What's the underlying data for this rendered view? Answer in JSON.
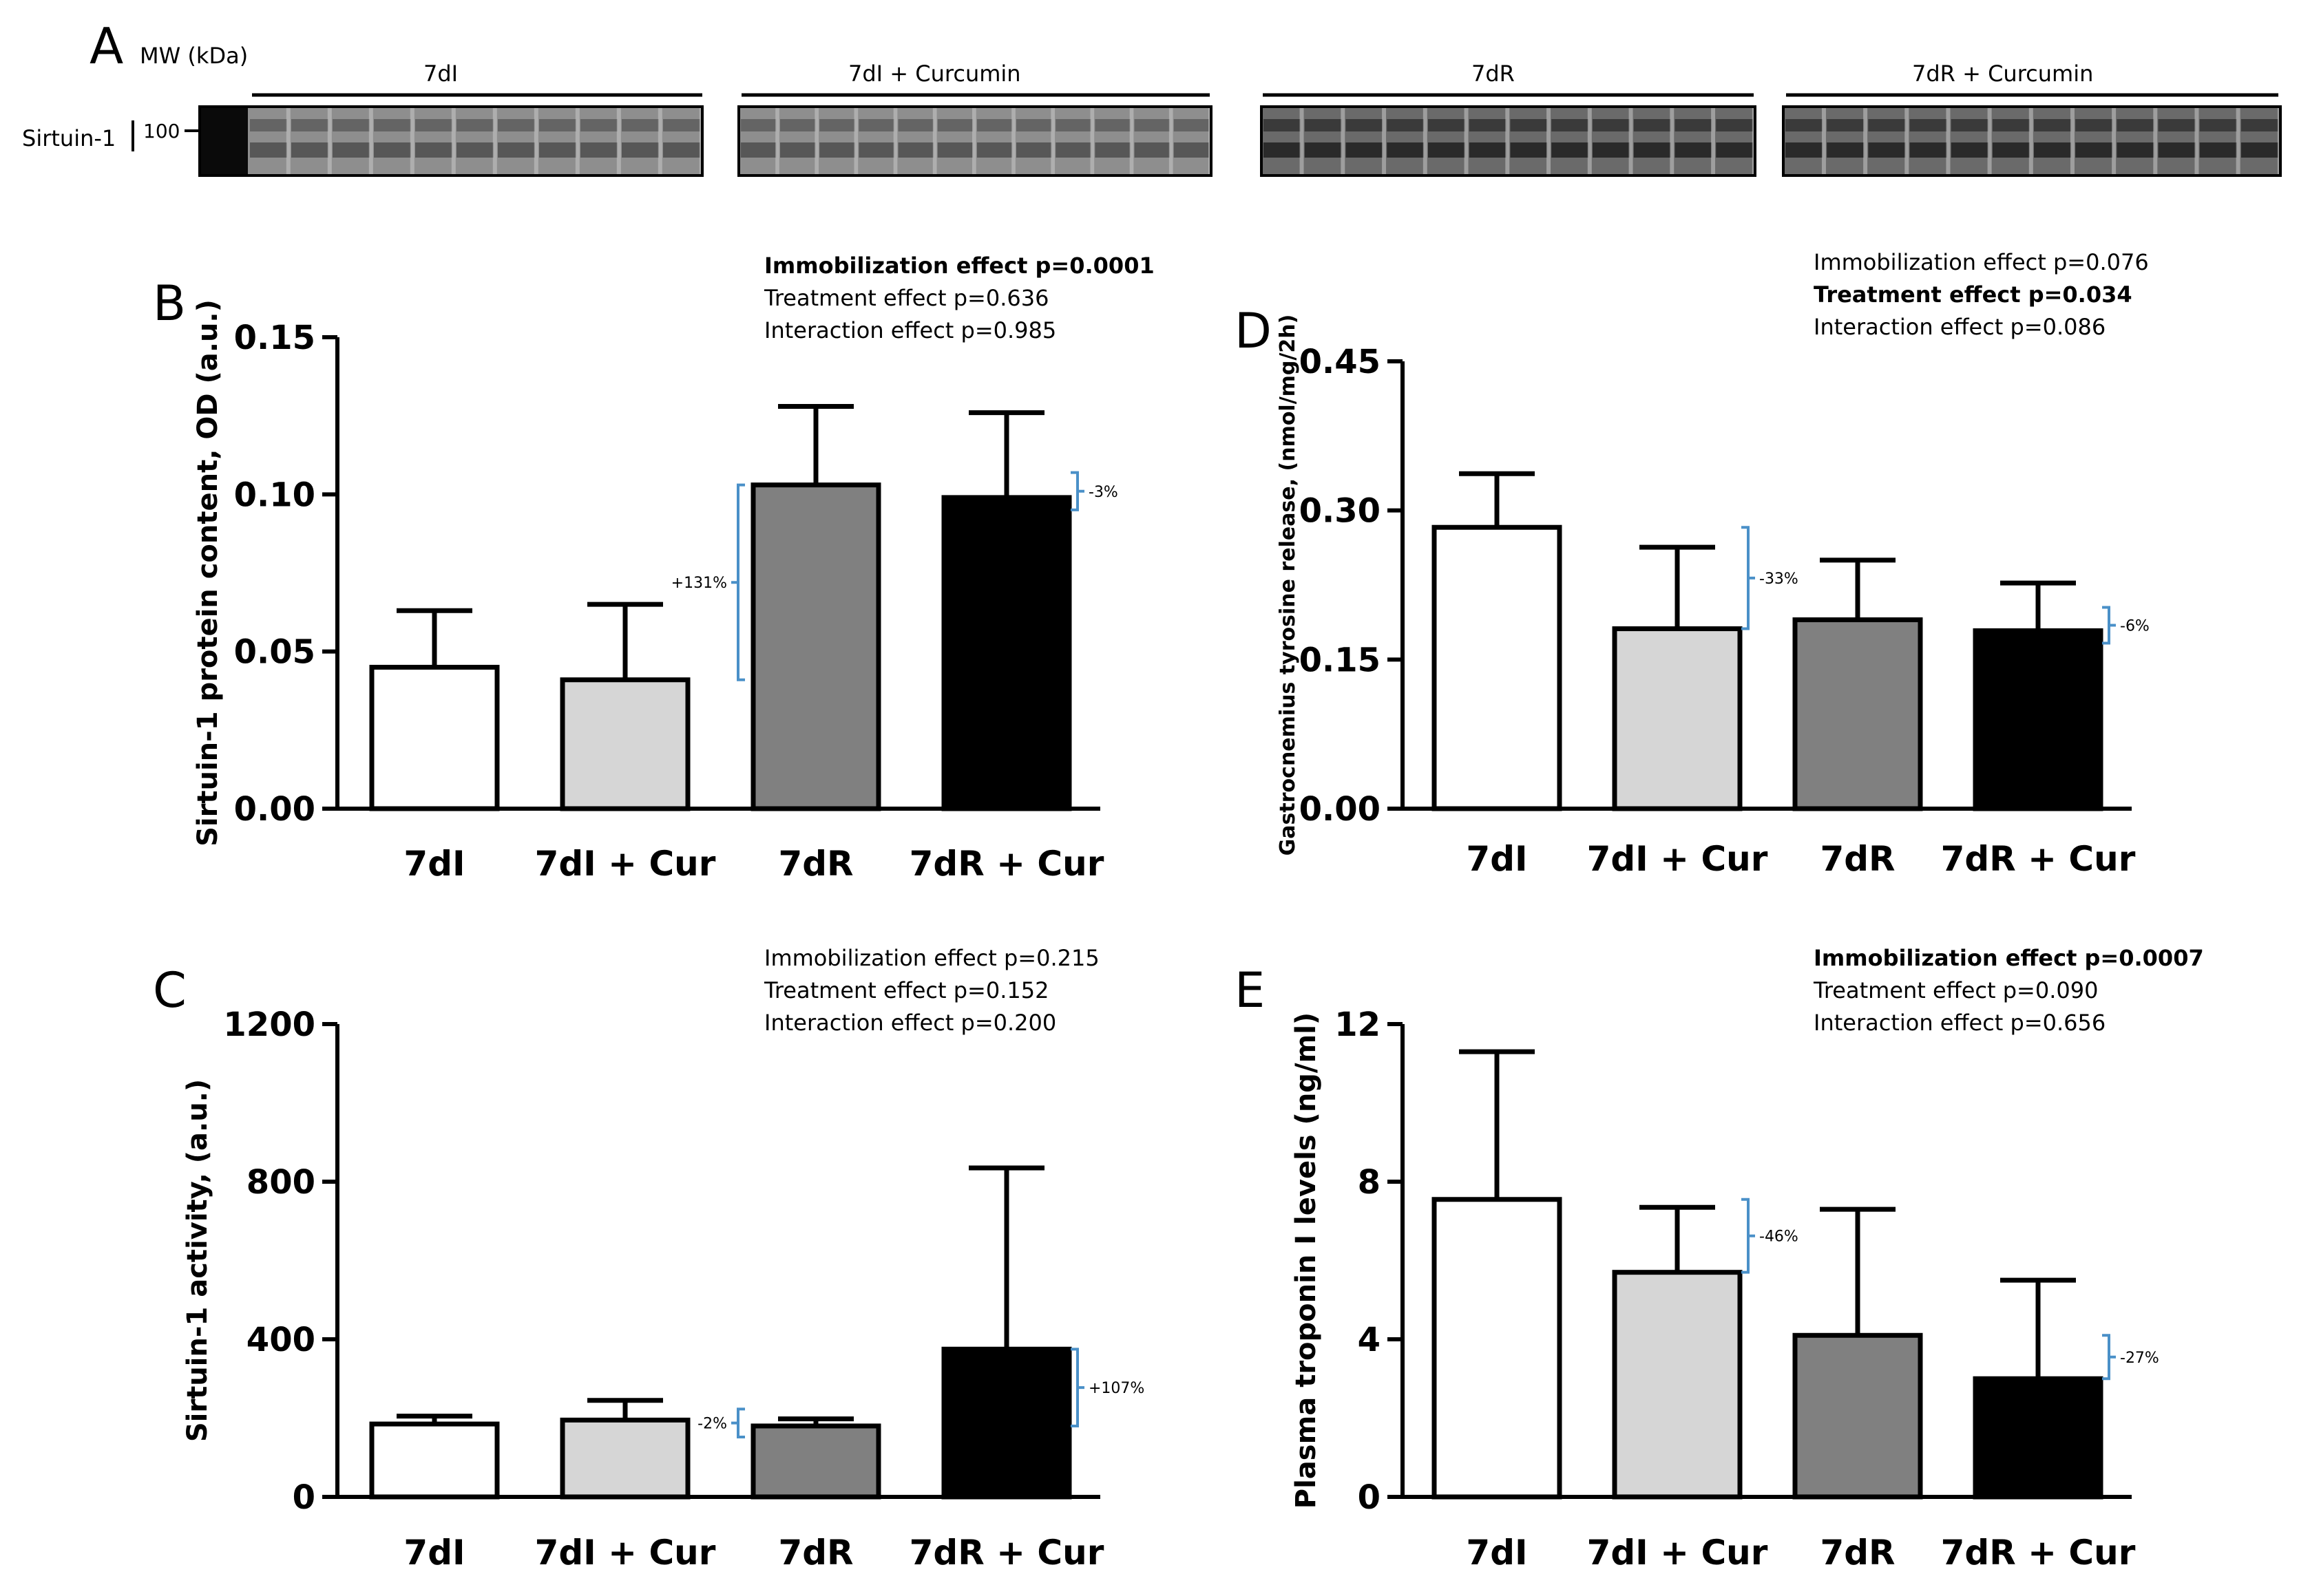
{
  "colors": {
    "bar_7dI": "#ffffff",
    "bar_7dI_cur": "#d6d6d6",
    "bar_7dR": "#808080",
    "bar_7dR_cur": "#000000",
    "bracket": "#4a90c8",
    "axis": "#000000"
  },
  "panel_A": {
    "letter": "A",
    "mw_label": "MW (kDa)",
    "protein_label": "Sirtuin-1",
    "marker_label": "100",
    "groups": [
      "7dI",
      "7dI + Curcumin",
      "7dR",
      "7dR + Curcumin"
    ]
  },
  "chart_data": [
    {
      "panel": "B",
      "type": "bar",
      "categories": [
        "7dI",
        "7dI + Cur",
        "7dR",
        "7dR + Cur"
      ],
      "values": [
        0.045,
        0.041,
        0.103,
        0.099
      ],
      "errors": [
        0.018,
        0.024,
        0.025,
        0.027
      ],
      "ylabel": "Sirtuin-1 protein content, OD (a.u.)",
      "ylim": [
        0,
        0.15
      ],
      "yticks": [
        "0.00",
        "0.05",
        "0.10",
        "0.15"
      ],
      "ytick_values": [
        0,
        0.05,
        0.1,
        0.15
      ],
      "stats": [
        {
          "text": "Immobilization effect p=0.0001",
          "bold": true
        },
        {
          "text": "Treatment effect p=0.636",
          "bold": false
        },
        {
          "text": "Interaction effect p=0.985",
          "bold": false
        }
      ],
      "annotations": [
        {
          "text": "+131%",
          "from": 1,
          "to": 2,
          "side": "left"
        },
        {
          "text": "-3%",
          "from": 3,
          "to": 3,
          "side": "right"
        }
      ]
    },
    {
      "panel": "C",
      "type": "bar",
      "categories": [
        "7dI",
        "7dI + Cur",
        "7dR",
        "7dR + Cur"
      ],
      "values": [
        185,
        195,
        180,
        375
      ],
      "errors": [
        20,
        50,
        18,
        460
      ],
      "ylabel": "Sirtuin-1 activity, (a.u.)",
      "ylim": [
        0,
        1200
      ],
      "yticks": [
        "0",
        "400",
        "800",
        "1200"
      ],
      "ytick_values": [
        0,
        400,
        800,
        1200
      ],
      "stats": [
        {
          "text": "Immobilization effect p=0.215",
          "bold": false
        },
        {
          "text": "Treatment effect p=0.152",
          "bold": false
        },
        {
          "text": "Interaction effect p=0.200",
          "bold": false
        }
      ],
      "annotations": [
        {
          "text": "-2%",
          "from": 1,
          "to": 2,
          "side": "left"
        },
        {
          "text": "+107%",
          "from": 3,
          "to": 3,
          "side": "right"
        }
      ]
    },
    {
      "panel": "D",
      "type": "bar",
      "categories": [
        "7dI",
        "7dI + Cur",
        "7dR",
        "7dR + Cur"
      ],
      "values": [
        0.283,
        0.181,
        0.19,
        0.179
      ],
      "errors": [
        0.054,
        0.082,
        0.06,
        0.048
      ],
      "ylabel": "Gastrocnemius tyrosine release, (nmol/mg/2h)",
      "ylim": [
        0,
        0.45
      ],
      "yticks": [
        "0.00",
        "0.15",
        "0.30",
        "0.45"
      ],
      "ytick_values": [
        0,
        0.15,
        0.3,
        0.45
      ],
      "stats": [
        {
          "text": "Immobilization effect p=0.076",
          "bold": false
        },
        {
          "text": "Treatment effect p=0.034",
          "bold": true
        },
        {
          "text": "Interaction effect p=0.086",
          "bold": false
        }
      ],
      "annotations": [
        {
          "text": "-33%",
          "from": 0,
          "to": 1,
          "side": "right"
        },
        {
          "text": "-6%",
          "from": 3,
          "to": 3,
          "side": "right"
        }
      ]
    },
    {
      "panel": "E",
      "type": "bar",
      "categories": [
        "7dI",
        "7dI + Cur",
        "7dR",
        "7dR + Cur"
      ],
      "values": [
        7.55,
        5.7,
        4.1,
        3.0
      ],
      "errors": [
        3.75,
        1.65,
        3.2,
        2.5
      ],
      "ylabel": "Plasma troponin I levels (ng/ml)",
      "ylim": [
        0,
        12
      ],
      "yticks": [
        "0",
        "4",
        "8",
        "12"
      ],
      "ytick_values": [
        0,
        4,
        8,
        12
      ],
      "stats": [
        {
          "text": "Immobilization effect p=0.0007",
          "bold": true
        },
        {
          "text": "Treatment effect p=0.090",
          "bold": false
        },
        {
          "text": "Interaction effect p=0.656",
          "bold": false
        }
      ],
      "annotations": [
        {
          "text": "-46%",
          "from": 0,
          "to": 1,
          "side": "right"
        },
        {
          "text": "-27%",
          "from": 3,
          "to": 3,
          "side": "right"
        }
      ]
    }
  ]
}
